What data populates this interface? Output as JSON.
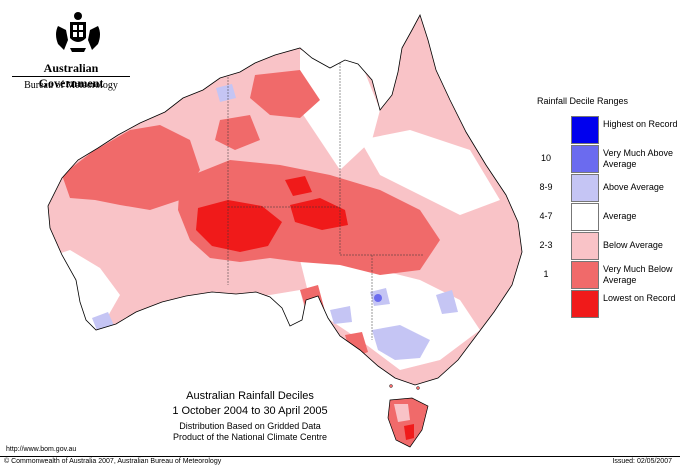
{
  "header": {
    "government": "Australian Government",
    "bureau": "Bureau of Meteorology"
  },
  "legend": {
    "title": "Rainfall Decile Ranges",
    "items": [
      {
        "code": "",
        "label": "Highest on Record",
        "color": "#0000ee"
      },
      {
        "code": "10",
        "label": "Very Much Above Average",
        "color": "#6b6bef"
      },
      {
        "code": "8-9",
        "label": "Above Average",
        "color": "#c5c5f4"
      },
      {
        "code": "4-7",
        "label": "Average",
        "color": "#ffffff"
      },
      {
        "code": "2-3",
        "label": "Below Average",
        "color": "#f9c3c7"
      },
      {
        "code": "1",
        "label": "Very Much Below Average",
        "color": "#f06a6a"
      },
      {
        "code": "",
        "label": "Lowest on Record",
        "color": "#f01a1a"
      }
    ]
  },
  "title": {
    "line1": "Australian Rainfall Deciles",
    "line2": "1 October 2004 to 30 April 2005",
    "line3": "Distribution Based on Gridded Data",
    "line4": "Product of the National Climate Centre"
  },
  "footer": {
    "url": "http://www.bom.gov.au",
    "copyright": "© Commonwealth of Australia 2007, Australian Bureau of Meteorology",
    "issued": "Issued: 02/05/2007"
  }
}
